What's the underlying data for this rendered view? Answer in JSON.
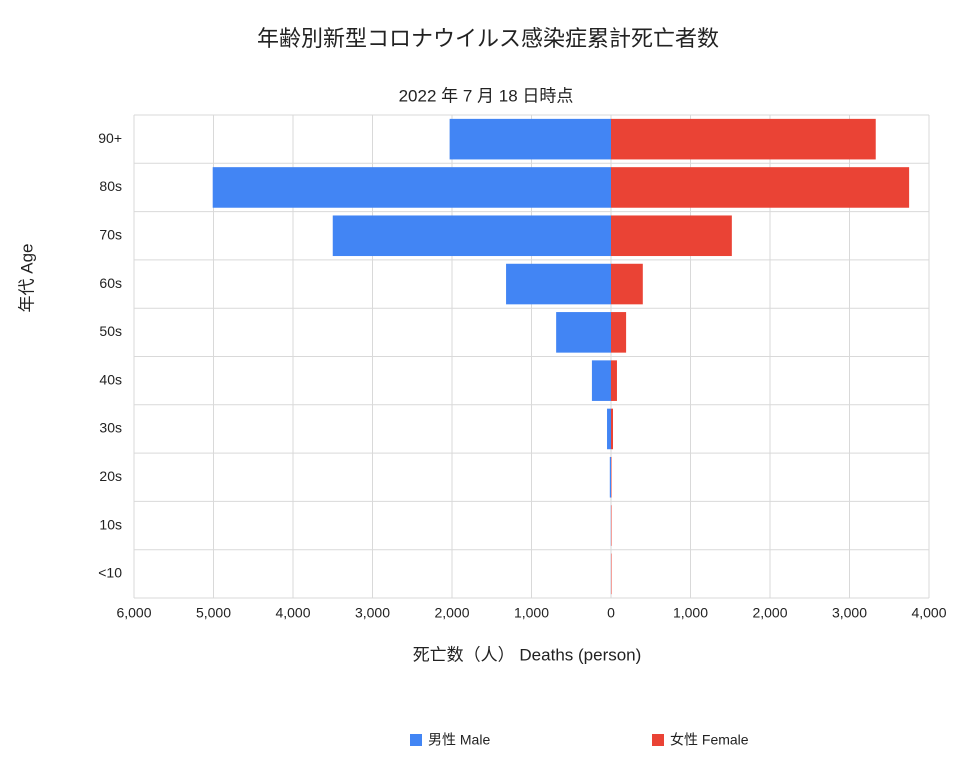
{
  "chart_data": {
    "type": "pyramid",
    "title": "年齢別新型コロナウイルス感染症累計死亡者数",
    "subtitle": "2022 年 7 月 18 日時点",
    "x_label": "死亡数（人） Deaths (person)",
    "y_label": "年代 Age",
    "categories": [
      "90+",
      "80s",
      "70s",
      "60s",
      "50s",
      "40s",
      "30s",
      "20s",
      "10s",
      "<10"
    ],
    "series": [
      {
        "name": "男性 Male",
        "color": "#4285f4",
        "values": [
          -2030,
          -5010,
          -3500,
          -1320,
          -690,
          -240,
          -50,
          -15,
          -2,
          -1
        ]
      },
      {
        "name": "女性 Female",
        "color": "#ea4335",
        "values": [
          3330,
          3750,
          1520,
          400,
          190,
          75,
          25,
          5,
          1,
          1
        ]
      }
    ],
    "xlim": [
      -6000,
      4000
    ],
    "xticks": [
      {
        "value": -6000,
        "label": "6,000"
      },
      {
        "value": -5000,
        "label": "5,000"
      },
      {
        "value": -4000,
        "label": "4,000"
      },
      {
        "value": -3000,
        "label": "3,000"
      },
      {
        "value": -2000,
        "label": "2,000"
      },
      {
        "value": -1000,
        "label": "1,000"
      },
      0,
      {
        "value": 1000,
        "label": "1,000"
      },
      {
        "value": 2000,
        "label": "2,000"
      },
      {
        "value": 3000,
        "label": "3,000"
      },
      {
        "value": 4000,
        "label": "4,000"
      }
    ],
    "grid": true,
    "legend": "bottom"
  }
}
